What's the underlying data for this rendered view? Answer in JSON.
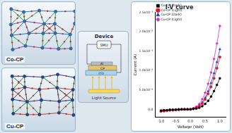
{
  "panels": {
    "co_cp": "Co-CP",
    "cu_cp": "Cu-CP",
    "device": {
      "title": "Device",
      "meter": "SMU",
      "top_layer": "Al",
      "middle_layer": "CP",
      "bottom_layer": "ITO",
      "light": "Light Source"
    }
  },
  "chart_data": {
    "type": "line",
    "title": "I-V curve",
    "x_label": "Voltage (Volt)",
    "y_label": "Current (A)",
    "x": [
      -1.0,
      -0.9,
      -0.8,
      -0.7,
      -0.6,
      -0.5,
      -0.4,
      -0.3,
      -0.2,
      -0.1,
      0.0,
      0.1,
      0.2,
      0.3,
      0.4,
      0.5,
      0.6,
      0.7,
      0.8,
      0.9,
      1.0
    ],
    "series": [
      {
        "name": "Co-CP (Dark)",
        "color": "#000000",
        "marker": "square",
        "values": [
          -3e-05,
          -2e-05,
          -2e-05,
          -1e-05,
          -1e-05,
          -1e-05,
          0,
          0,
          0,
          0,
          0,
          1e-05,
          2e-05,
          4e-05,
          8e-05,
          0.00014,
          0.00022,
          0.00033,
          0.00047,
          0.00063,
          0.0008
        ]
      },
      {
        "name": "Co-CP (Light)",
        "color": "#e41a1c",
        "marker": "circle",
        "values": [
          -5e-05,
          -4e-05,
          -3e-05,
          -2e-05,
          -2e-05,
          -1e-05,
          -1e-05,
          0,
          0,
          0,
          0,
          2e-05,
          4e-05,
          8e-05,
          0.00015,
          0.00026,
          0.0004,
          0.00058,
          0.0008,
          0.00106,
          0.00135
        ]
      },
      {
        "name": "Cu-CP (Dark)",
        "color": "#1f3fd6",
        "marker": "triangle",
        "values": [
          -4e-05,
          -3e-05,
          -3e-05,
          -2e-05,
          -2e-05,
          -1e-05,
          -1e-05,
          0,
          0,
          0,
          0,
          2e-05,
          5e-05,
          0.0001,
          0.00018,
          0.0003,
          0.00047,
          0.00068,
          0.00093,
          0.00122,
          0.00155
        ]
      },
      {
        "name": "Cu-CP (Light)",
        "color": "#d62fd0",
        "marker": "diamond",
        "values": [
          -6e-05,
          -5e-05,
          -4e-05,
          -3e-05,
          -2e-05,
          -2e-05,
          -1e-05,
          0,
          0,
          0,
          0,
          3e-05,
          7e-05,
          0.00014,
          0.00026,
          0.00043,
          0.00066,
          0.00095,
          0.0013,
          0.0017,
          0.00215
        ]
      }
    ],
    "xlim": [
      -1.2,
      1.2
    ],
    "xticks": [
      {
        "value": -1,
        "label": "-1.0"
      },
      {
        "value": -0.5,
        "label": "-0.5"
      },
      {
        "value": 0,
        "label": "0.0"
      },
      {
        "value": 0.5,
        "label": "0.5"
      },
      {
        "value": 1,
        "label": "1.0"
      }
    ],
    "ylim": [
      -0.0002,
      0.0025
    ],
    "yticks": [
      {
        "value": 0,
        "label": "0.0"
      },
      {
        "value": 0.0005,
        "label": "5.0x10⁻⁴"
      },
      {
        "value": 0.001,
        "label": "1.0x10⁻³"
      },
      {
        "value": 0.0015,
        "label": "1.5x10⁻³"
      },
      {
        "value": 0.002,
        "label": "2.0x10⁻³"
      },
      {
        "value": 0.0025,
        "label": "2.5x10⁻³"
      }
    ],
    "grid": false,
    "legend": "upper left"
  }
}
